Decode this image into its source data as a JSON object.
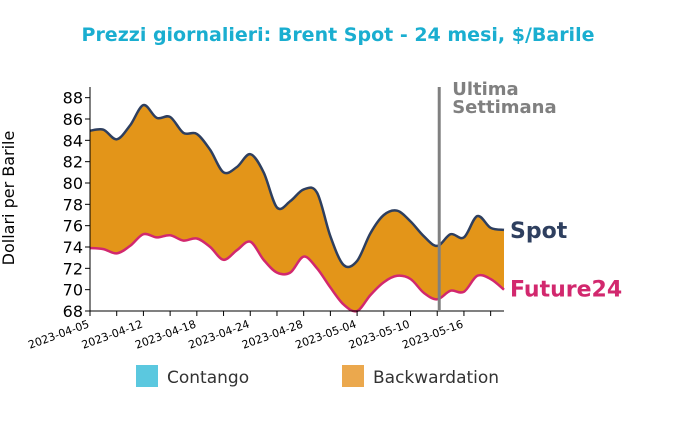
{
  "chart_data": {
    "type": "area",
    "title": "Prezzi giornalieri: Brent Spot - 24 mesi, $/Barile",
    "ylabel": "Dollari per Barile",
    "xlabel": "",
    "ylim": [
      68,
      89
    ],
    "yticks": [
      68,
      70,
      72,
      74,
      76,
      78,
      80,
      82,
      84,
      86,
      88
    ],
    "xticks": [
      "2023-04-05",
      "2023-04-12",
      "2023-04-18",
      "2023-04-24",
      "2023-04-28",
      "2023-05-04",
      "2023-05-10",
      "2023-05-16"
    ],
    "annotation": {
      "text_line1": "Ultima",
      "text_line2": "Settimana",
      "x": 26
    },
    "series": [
      {
        "name": "Spot",
        "color": "#2e3f5f",
        "values": [
          84.9,
          85.0,
          84.1,
          85.4,
          87.3,
          86.1,
          86.2,
          84.7,
          84.6,
          83.1,
          81.0,
          81.5,
          82.7,
          81.0,
          77.7,
          78.3,
          79.4,
          79.1,
          75.0,
          72.3,
          72.7,
          75.3,
          77.0,
          77.4,
          76.4,
          75.0,
          74.1,
          75.2,
          74.9,
          76.9,
          75.8,
          75.6
        ]
      },
      {
        "name": "Future24",
        "color": "#d2286e",
        "values": [
          73.9,
          73.8,
          73.4,
          74.1,
          75.2,
          74.9,
          75.1,
          74.6,
          74.8,
          74.0,
          72.8,
          73.7,
          74.5,
          72.8,
          71.6,
          71.6,
          73.1,
          72.0,
          70.2,
          68.6,
          68.0,
          69.5,
          70.7,
          71.3,
          71.0,
          69.7,
          69.1,
          69.9,
          69.8,
          71.3,
          71.0,
          70.0
        ]
      }
    ],
    "legend": {
      "position": "bottom",
      "items": [
        {
          "label": "Contango",
          "color": "#5bc8df"
        },
        {
          "label": "Backwardation",
          "color": "#eba84d"
        }
      ]
    },
    "fill_color": "#e39519",
    "title_color": "#1aaed0",
    "annotation_color": "#808080"
  }
}
